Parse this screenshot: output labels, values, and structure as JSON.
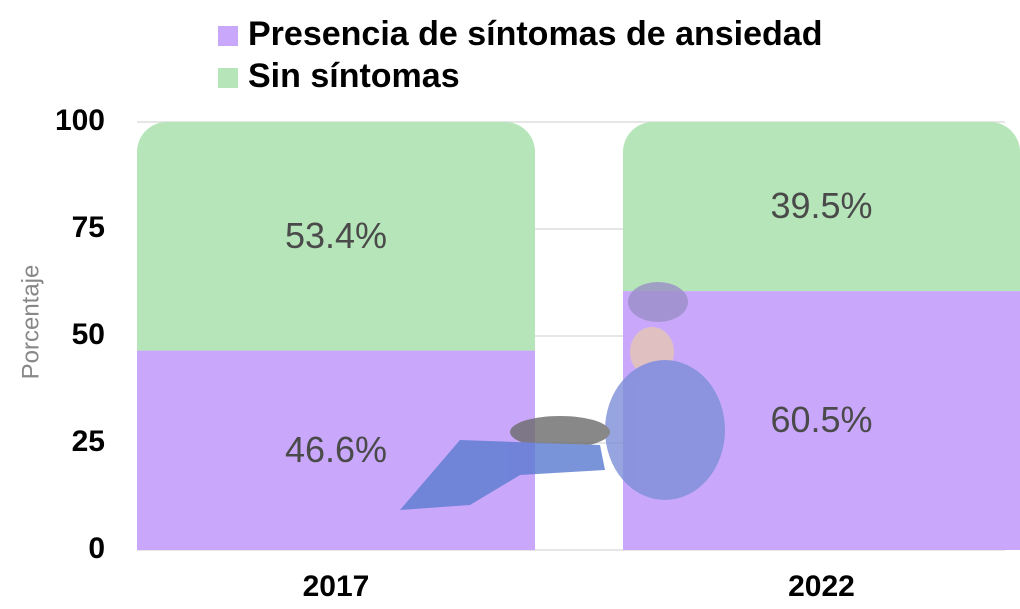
{
  "chart_data": {
    "type": "stacked_bar",
    "categories": [
      "2017",
      "2022"
    ],
    "series": [
      {
        "name": "Presencia de síntomas de ansiedad",
        "color": "#c9a8fb",
        "values": [
          46.6,
          60.5
        ],
        "value_labels": [
          "46.6%",
          "60.5%"
        ]
      },
      {
        "name": "Sin síntomas",
        "color": "#b5e5b8",
        "values": [
          53.4,
          39.5
        ],
        "value_labels": [
          "53.4%",
          "39.5%"
        ]
      }
    ],
    "y_label": "Porcentaje",
    "ylim": [
      0,
      100
    ],
    "yticks": [
      0,
      25,
      50,
      75,
      100
    ],
    "grid": true
  }
}
